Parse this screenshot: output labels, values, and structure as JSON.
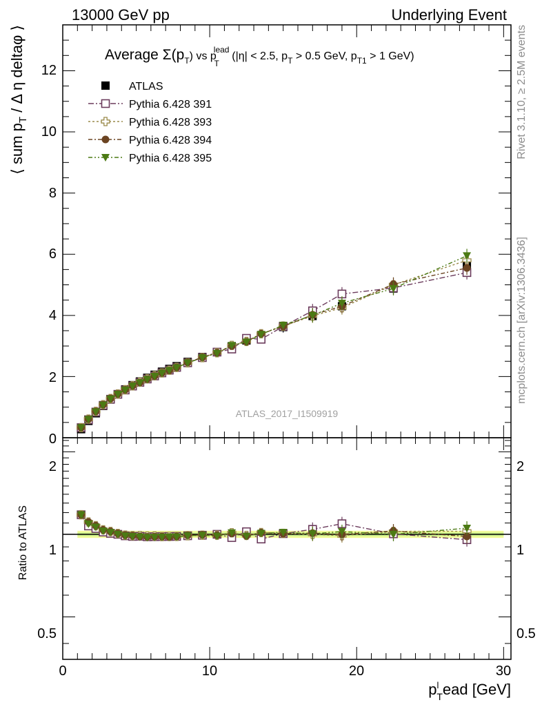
{
  "header": {
    "left_title": "13000 GeV pp",
    "right_title": "Underlying Event"
  },
  "side_labels": {
    "rivet": "Rivet 3.1.10, ≥ 2.5M events",
    "mcplots": "mcplots.cern.ch [arXiv:1306.3436]"
  },
  "chart_data": {
    "type": "scatter",
    "title_main": "Average Σ(p",
    "title_sub_T": "T",
    "title_mid": ") vs p",
    "title_sup_lead": "lead",
    "title_sub_T2": "T",
    "title_cond1": " (|η| < 2.5, p",
    "title_sub_T3": "T",
    "title_cond2": " > 0.5 GeV, p",
    "title_sub_T1": "T1",
    "title_cond3": " > 1 GeV)",
    "watermark": "ATLAS_2017_I1509919",
    "ylabel_main_a": "⟨ sum p",
    "ylabel_main_sub": "T",
    "ylabel_main_b": " / Δ η deltaφ ⟩",
    "ylabel_ratio": "Ratio to ATLAS",
    "xlabel_a": "p",
    "xlabel_sup": "l",
    "xlabel_sub": "T",
    "xlabel_b": "ead [GeV]",
    "xlim": [
      0,
      30.5
    ],
    "ylim": [
      0,
      13.5
    ],
    "ratio_ylim": [
      0.35,
      2.25
    ],
    "x_ticks": [
      "0",
      "10",
      "20",
      "30"
    ],
    "y_ticks": [
      "0",
      "2",
      "4",
      "6",
      "8",
      "10",
      "12"
    ],
    "ratio_ticks": [
      "0.5",
      "1",
      "2"
    ],
    "legend_position": "top-left",
    "x": [
      1.25,
      1.75,
      2.25,
      2.75,
      3.25,
      3.75,
      4.25,
      4.75,
      5.25,
      5.75,
      6.25,
      6.75,
      7.25,
      7.75,
      8.5,
      9.5,
      10.5,
      11.5,
      12.5,
      13.5,
      15.0,
      17.0,
      19.0,
      22.5,
      27.5
    ],
    "series": [
      {
        "name": "ATLAS",
        "color": "#000000",
        "marker": "filled-square",
        "values": [
          0.28,
          0.55,
          0.8,
          1.04,
          1.25,
          1.42,
          1.58,
          1.72,
          1.84,
          1.96,
          2.06,
          2.16,
          2.25,
          2.34,
          2.48,
          2.64,
          2.8,
          2.98,
          3.18,
          3.35,
          3.62,
          3.98,
          4.3,
          4.88,
          5.65
        ]
      },
      {
        "name": "Pythia 6.428 391",
        "color": "#6b3b5c",
        "marker": "open-square",
        "dash": "8,3,2,3",
        "values": [
          0.33,
          0.59,
          0.84,
          1.06,
          1.26,
          1.42,
          1.56,
          1.69,
          1.81,
          1.92,
          2.02,
          2.12,
          2.21,
          2.3,
          2.45,
          2.62,
          2.8,
          2.9,
          3.25,
          3.22,
          3.64,
          4.15,
          4.7,
          4.9,
          5.4
        ]
      },
      {
        "name": "Pythia 6.428 393",
        "color": "#9a8a4a",
        "marker": "open-cross",
        "dash": "3,3",
        "values": [
          0.33,
          0.61,
          0.86,
          1.08,
          1.28,
          1.43,
          1.57,
          1.7,
          1.82,
          1.93,
          2.03,
          2.12,
          2.21,
          2.3,
          2.45,
          2.62,
          2.78,
          3.02,
          3.15,
          3.4,
          3.65,
          3.98,
          4.25,
          5.0,
          5.8
        ]
      },
      {
        "name": "Pythia 6.428 394",
        "color": "#6b4422",
        "marker": "filled-circle",
        "dash": "6,3,2,3",
        "values": [
          0.33,
          0.61,
          0.86,
          1.08,
          1.28,
          1.43,
          1.57,
          1.7,
          1.81,
          1.92,
          2.02,
          2.12,
          2.2,
          2.3,
          2.46,
          2.63,
          2.78,
          3.0,
          3.14,
          3.4,
          3.64,
          4.02,
          4.3,
          5.02,
          5.55
        ]
      },
      {
        "name": "Pythia 6.428 395",
        "color": "#4c7a14",
        "marker": "filled-triangle-down",
        "dash": "6,3,2,3,2,3",
        "values": [
          0.33,
          0.6,
          0.85,
          1.07,
          1.27,
          1.42,
          1.56,
          1.69,
          1.8,
          1.91,
          2.01,
          2.11,
          2.2,
          2.29,
          2.45,
          2.62,
          2.76,
          3.02,
          3.13,
          3.38,
          3.68,
          4.0,
          4.4,
          4.88,
          5.95
        ]
      }
    ]
  }
}
